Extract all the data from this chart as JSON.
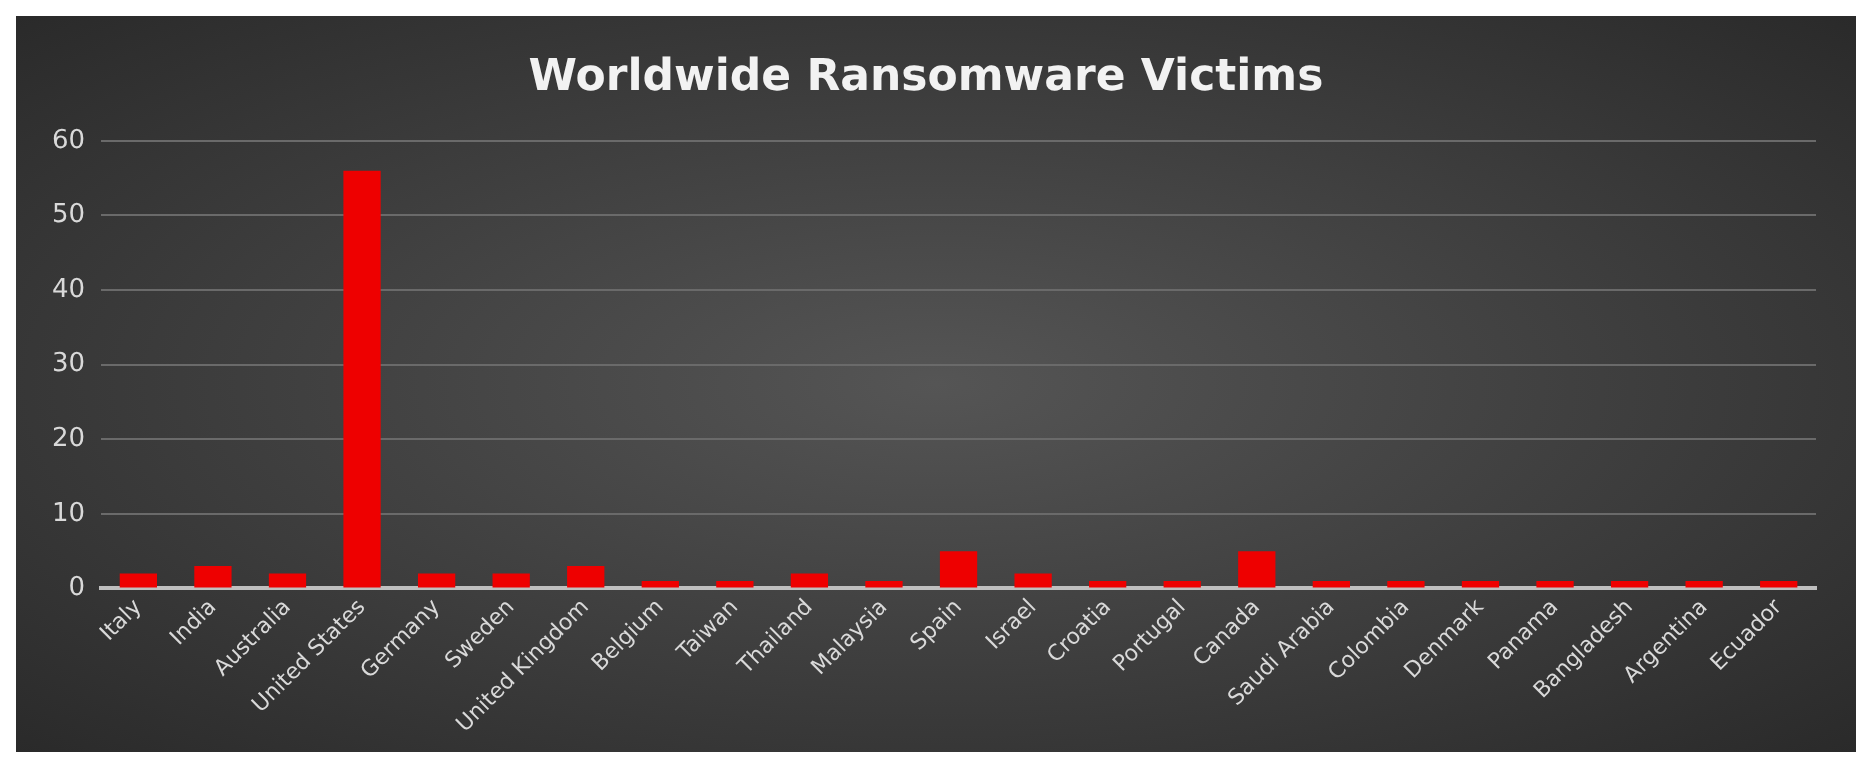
{
  "chart_data": {
    "type": "bar",
    "title": "Worldwide Ransomware Victims",
    "categories": [
      "Italy",
      "India",
      "Australia",
      "United States",
      "Germany",
      "Sweden",
      "United Kingdom",
      "Belgium",
      "Taiwan",
      "Thailand",
      "Malaysia",
      "Spain",
      "Israel",
      "Croatia",
      "Portugal",
      "Canada",
      "Saudi Arabia",
      "Colombia",
      "Denmark",
      "Panama",
      "Bangladesh",
      "Argentina",
      "Ecuador"
    ],
    "values": [
      2,
      3,
      2,
      56,
      2,
      2,
      3,
      1,
      1,
      2,
      1,
      5,
      2,
      1,
      1,
      5,
      1,
      1,
      1,
      1,
      1,
      1,
      1
    ],
    "color": "#ee0000",
    "ylim": [
      0,
      60
    ],
    "yticks": [
      0,
      10,
      20,
      30,
      40,
      50,
      60
    ],
    "grid": "y",
    "legend": false
  }
}
